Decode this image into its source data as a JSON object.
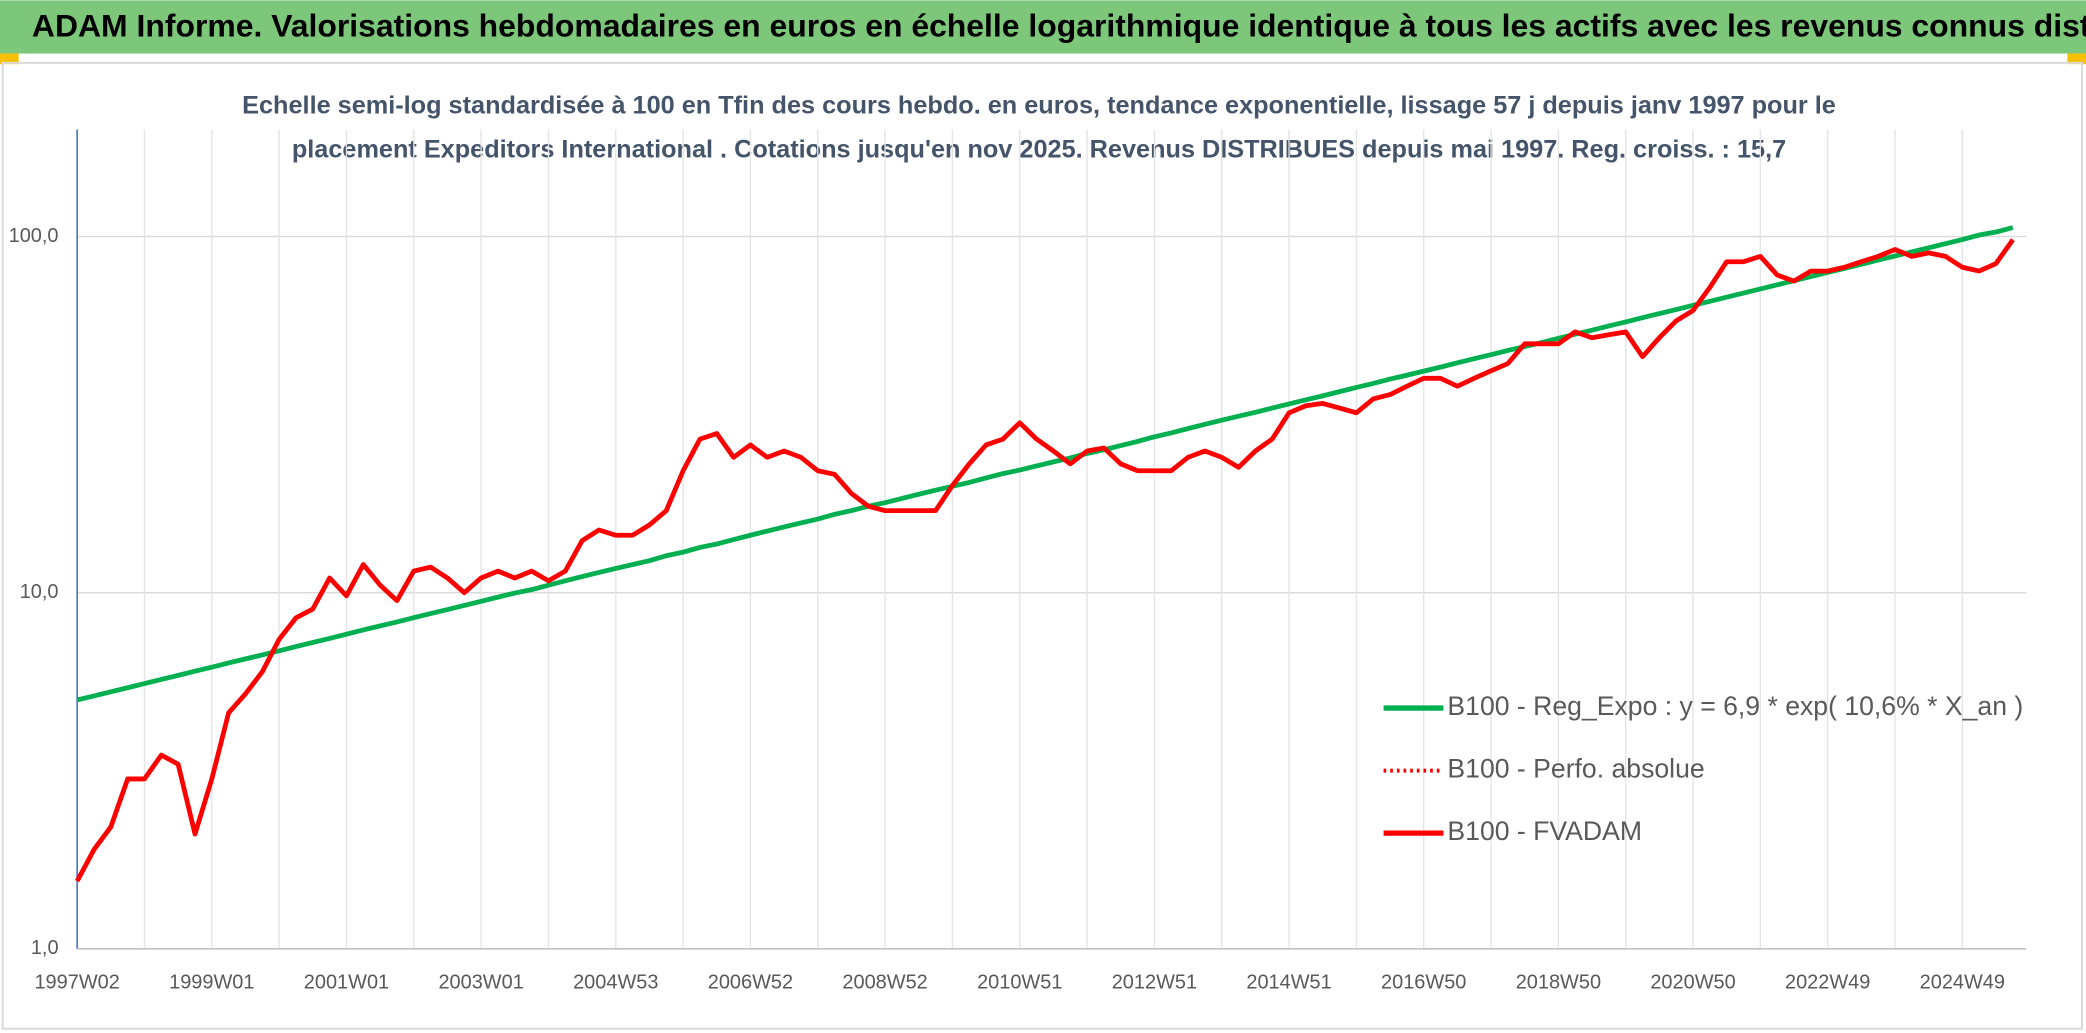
{
  "chart_data": {
    "type": "line",
    "title": "ADAM Informe. Valorisations hebdomadaires en euros en échelle logarithmique identique à tous les actifs avec les revenus connus distribués",
    "subtitle": [
      "Echelle semi-log standardisée à 100 en Tfin des cours hebdo. en euros, tendance exponentielle, lissage 57 j depuis janv 1997 pour le",
      "placement Expeditors International . Cotations jusqu'en nov 2025. Revenus DISTRIBUES depuis mai 1997. Reg. croiss. : 15,7"
    ],
    "categories": [
      "1997W02",
      null,
      null,
      null,
      null,
      null,
      null,
      null,
      "1999W01",
      null,
      null,
      null,
      null,
      null,
      null,
      null,
      "2001W01",
      null,
      null,
      null,
      null,
      null,
      null,
      null,
      "2003W01",
      null,
      null,
      null,
      null,
      null,
      null,
      null,
      "2004W53",
      null,
      null,
      null,
      null,
      null,
      null,
      null,
      "2006W52",
      null,
      null,
      null,
      null,
      null,
      null,
      null,
      "2008W52",
      null,
      null,
      null,
      null,
      null,
      null,
      null,
      "2010W51",
      null,
      null,
      null,
      null,
      null,
      null,
      null,
      "2012W51",
      null,
      null,
      null,
      null,
      null,
      null,
      null,
      "2014W51",
      null,
      null,
      null,
      null,
      null,
      null,
      null,
      "2016W50",
      null,
      null,
      null,
      null,
      null,
      null,
      null,
      "2018W50",
      null,
      null,
      null,
      null,
      null,
      null,
      null,
      "2020W50",
      null,
      null,
      null,
      null,
      null,
      null,
      null,
      "2022W49",
      null,
      null,
      null,
      null,
      null,
      null,
      null,
      "2024W49",
      null,
      null,
      null
    ],
    "log_scale": true,
    "ylim": [
      1,
      200
    ],
    "yticks": [
      {
        "value": 1,
        "label": "1,0"
      },
      {
        "value": 10,
        "label": "10,0"
      },
      {
        "value": 100,
        "label": "100,0"
      }
    ],
    "grid": true,
    "legend": "lower right",
    "series": [
      {
        "name": "B100 - Reg_Expo : y = 6,9 * exp( 10,6% *  X_an )",
        "color": "#00b050",
        "line_style": "solid",
        "values": [
          5.0,
          5.13,
          5.27,
          5.41,
          5.56,
          5.71,
          5.86,
          6.02,
          6.18,
          6.35,
          6.52,
          6.69,
          6.87,
          7.06,
          7.25,
          7.44,
          7.65,
          7.86,
          8.07,
          8.28,
          8.51,
          8.74,
          8.97,
          9.21,
          9.46,
          9.72,
          9.98,
          10.2,
          10.5,
          10.8,
          11.1,
          11.4,
          11.7,
          12.0,
          12.3,
          12.7,
          13.0,
          13.4,
          13.7,
          14.1,
          14.5,
          14.9,
          15.3,
          15.7,
          16.1,
          16.6,
          17.0,
          17.5,
          17.9,
          18.4,
          18.9,
          19.4,
          19.9,
          20.4,
          21.0,
          21.6,
          22.1,
          22.7,
          23.3,
          23.9,
          24.6,
          25.2,
          25.9,
          26.6,
          27.4,
          28.1,
          28.9,
          29.7,
          30.5,
          31.3,
          32.1,
          33.0,
          33.9,
          34.8,
          35.7,
          36.7,
          37.7,
          38.7,
          39.8,
          40.8,
          41.9,
          43.0,
          44.2,
          45.4,
          46.6,
          47.9,
          49.1,
          50.4,
          51.8,
          53.2,
          54.6,
          56.1,
          57.6,
          59.2,
          60.8,
          62.4,
          64.1,
          65.8,
          67.6,
          69.4,
          71.3,
          73.2,
          75.2,
          77.2,
          79.3,
          81.4,
          83.6,
          85.9,
          88.2,
          90.6,
          93.0,
          95.5,
          98.1,
          101,
          103,
          106
        ]
      },
      {
        "name": "B100 - Perfo. absolue",
        "color": "#ff0000",
        "line_style": "dotted",
        "values": [
          1.55,
          1.9,
          2.2,
          3.0,
          3.0,
          3.5,
          3.3,
          2.1,
          3.0,
          4.6,
          5.2,
          6.0,
          7.4,
          8.5,
          9.0,
          11.0,
          9.8,
          12.0,
          10.5,
          9.5,
          11.5,
          11.8,
          11.0,
          10.0,
          11.0,
          11.5,
          11.0,
          11.5,
          10.8,
          11.5,
          14.0,
          15.0,
          14.5,
          14.5,
          15.5,
          17.0,
          22.0,
          27.0,
          28.0,
          24.0,
          26.0,
          24.0,
          25.0,
          24.0,
          22.0,
          21.5,
          19.0,
          17.5,
          17.0,
          17.0,
          17.0,
          17.0,
          20.0,
          23.0,
          26.0,
          27.0,
          30.0,
          27.0,
          25.0,
          23.0,
          25.0,
          25.5,
          23.0,
          22.0,
          22.0,
          22.0,
          24.0,
          25.0,
          24.0,
          22.5,
          25.0,
          27.0,
          32.0,
          33.5,
          34.0,
          33.0,
          32.0,
          35.0,
          36.0,
          38.0,
          40.0,
          40.0,
          38.0,
          40.0,
          42.0,
          44.0,
          50.0,
          50.0,
          50.0,
          54.0,
          52.0,
          53.0,
          54.0,
          46.0,
          52.0,
          58.0,
          62.0,
          72.0,
          85.0,
          85.0,
          88.0,
          78.0,
          75.0,
          80.0,
          80.0,
          82.0,
          85.0,
          88.0,
          92.0,
          88.0,
          90.0,
          88.0,
          82.0,
          80.0,
          84.0,
          98.0
        ]
      },
      {
        "name": "B100 - FVADAM",
        "color": "#ff0000",
        "line_style": "solid",
        "values": [
          1.55,
          1.9,
          2.2,
          3.0,
          3.0,
          3.5,
          3.3,
          2.1,
          3.0,
          4.6,
          5.2,
          6.0,
          7.4,
          8.5,
          9.0,
          11.0,
          9.8,
          12.0,
          10.5,
          9.5,
          11.5,
          11.8,
          11.0,
          10.0,
          11.0,
          11.5,
          11.0,
          11.5,
          10.8,
          11.5,
          14.0,
          15.0,
          14.5,
          14.5,
          15.5,
          17.0,
          22.0,
          27.0,
          28.0,
          24.0,
          26.0,
          24.0,
          25.0,
          24.0,
          22.0,
          21.5,
          19.0,
          17.5,
          17.0,
          17.0,
          17.0,
          17.0,
          20.0,
          23.0,
          26.0,
          27.0,
          30.0,
          27.0,
          25.0,
          23.0,
          25.0,
          25.5,
          23.0,
          22.0,
          22.0,
          22.0,
          24.0,
          25.0,
          24.0,
          22.5,
          25.0,
          27.0,
          32.0,
          33.5,
          34.0,
          33.0,
          32.0,
          35.0,
          36.0,
          38.0,
          40.0,
          40.0,
          38.0,
          40.0,
          42.0,
          44.0,
          50.0,
          50.0,
          50.0,
          54.0,
          52.0,
          53.0,
          54.0,
          46.0,
          52.0,
          58.0,
          62.0,
          72.0,
          85.0,
          85.0,
          88.0,
          78.0,
          75.0,
          80.0,
          80.0,
          82.0,
          85.0,
          88.0,
          92.0,
          88.0,
          90.0,
          88.0,
          82.0,
          80.0,
          84.0,
          98.0
        ]
      }
    ]
  }
}
